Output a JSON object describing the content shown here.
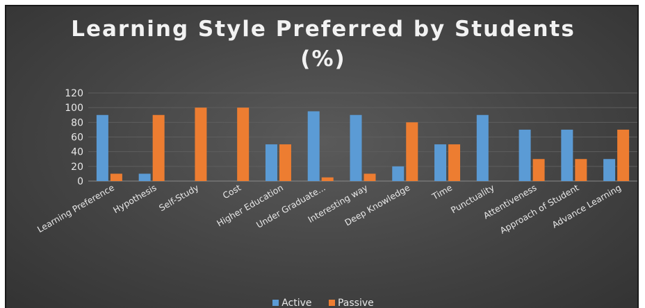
{
  "chart_data": {
    "type": "bar",
    "title": "Learning Style Preferred by Students (%)",
    "title_lines": [
      "Learning Style Preferred by Students",
      "(%)"
    ],
    "categories": [
      "Learning Preference",
      "Hypothesis",
      "Self-Study",
      "Cost",
      "Higher Education",
      "Under Graduate...",
      "Interesting way",
      "Deep Knowledge",
      "Time",
      "Punctuality",
      "Attentiveness",
      "Approach of Student",
      "Advance Learning"
    ],
    "series": [
      {
        "name": "Active",
        "color": "#5b9bd5",
        "values": [
          90,
          10,
          0,
          0,
          50,
          95,
          90,
          20,
          50,
          90,
          70,
          70,
          30
        ]
      },
      {
        "name": "Passive",
        "color": "#ed7d31",
        "values": [
          10,
          90,
          100,
          100,
          50,
          5,
          10,
          80,
          50,
          0,
          30,
          30,
          70
        ]
      }
    ],
    "ylim": [
      0,
      120
    ],
    "yticks": [
      0,
      20,
      40,
      60,
      80,
      100,
      120
    ],
    "xlabel": "",
    "ylabel": "",
    "grid": true,
    "legend_position": "bottom"
  }
}
